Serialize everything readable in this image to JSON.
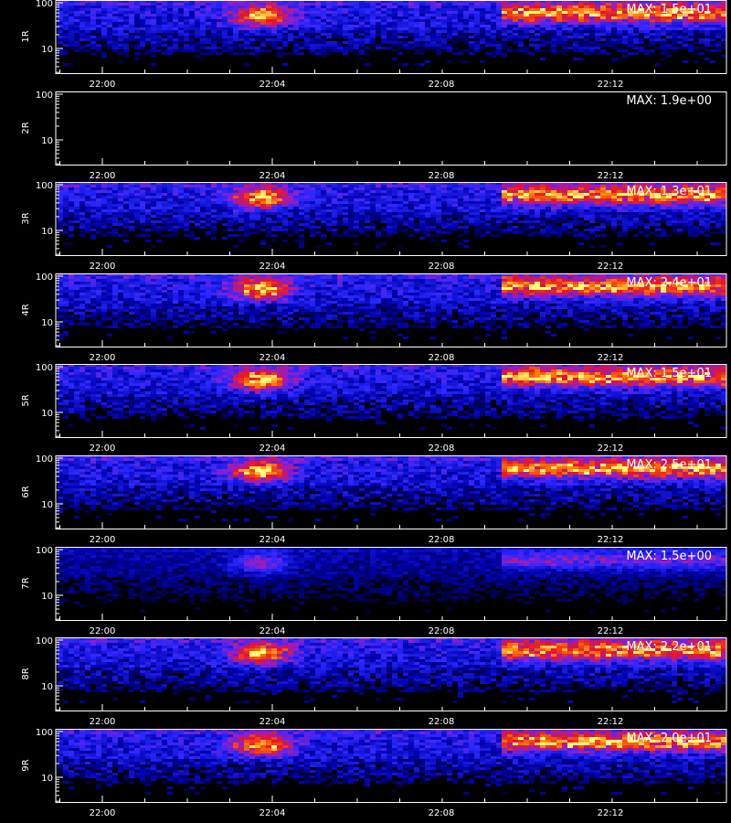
{
  "chart_data": {
    "type": "heatmap",
    "x_ticks": [
      "22:00",
      "22:04",
      "22:08",
      "22:12"
    ],
    "y_ticks": [
      "100",
      "10"
    ],
    "y_scale": "log",
    "x_title": "",
    "panels": [
      {
        "label": "1R",
        "max_label": "MAX: 1.5e+01",
        "max": 15,
        "has_data": true
      },
      {
        "label": "2R",
        "max_label": "MAX: 1.9e+00",
        "max": 1.9,
        "has_data": false
      },
      {
        "label": "3R",
        "max_label": "MAX: 1.3e+01",
        "max": 13,
        "has_data": true
      },
      {
        "label": "4R",
        "max_label": "MAX: 2.4e+01",
        "max": 24,
        "has_data": true
      },
      {
        "label": "5R",
        "max_label": "MAX: 1.5e+01",
        "max": 15,
        "has_data": true
      },
      {
        "label": "6R",
        "max_label": "MAX: 2.5e+01",
        "max": 25,
        "has_data": true
      },
      {
        "label": "7R",
        "max_label": "MAX: 1.5e+00",
        "max": 1.5,
        "has_data": true
      },
      {
        "label": "8R",
        "max_label": "MAX: 2.2e+01",
        "max": 22,
        "has_data": true
      },
      {
        "label": "9R",
        "max_label": "MAX: 2.0e+01",
        "max": 20,
        "has_data": true
      }
    ],
    "colors": {
      "background": "#000000",
      "axis": "#ffffff",
      "low": "#0000ff",
      "mid": "#ff0000",
      "high": "#ffff66"
    }
  }
}
